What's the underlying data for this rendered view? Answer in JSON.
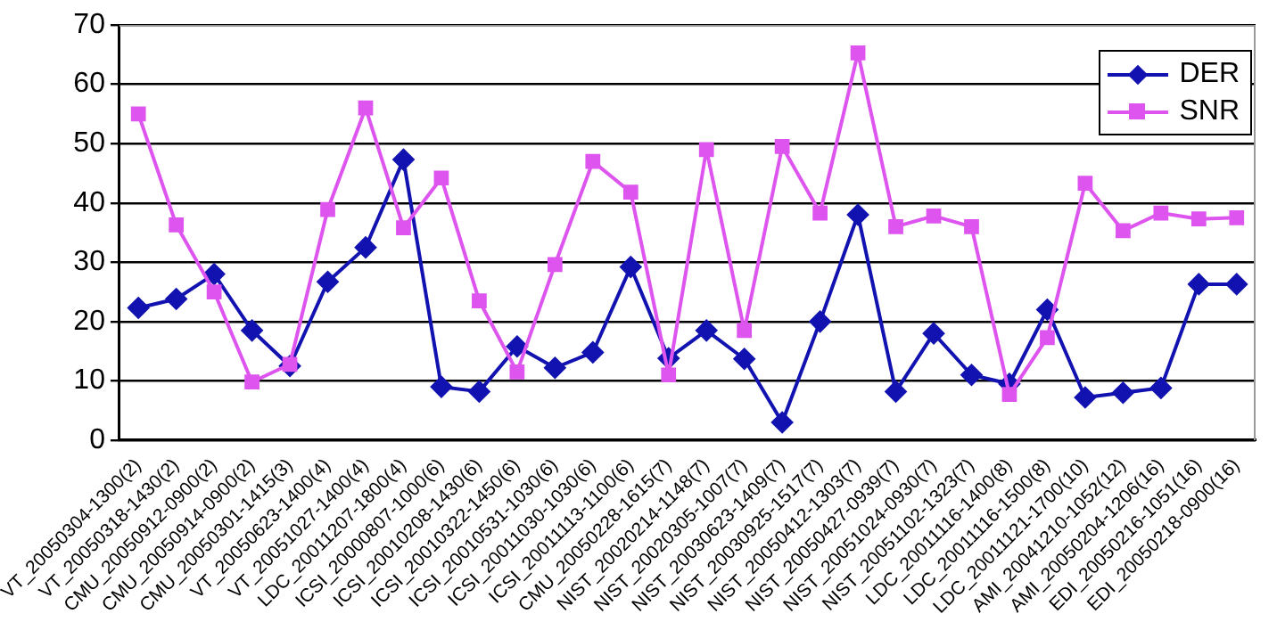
{
  "chart_data": {
    "type": "line",
    "categories": [
      "VT_20050304-1300(2)",
      "VT_20050318-1430(2)",
      "CMU_20050912-0900(2)",
      "CMU_20050914-0900(2)",
      "CMU_20050301-1415(3)",
      "VT_20050623-1400(4)",
      "VT_20051027-1400(4)",
      "LDC_20011207-1800(4)",
      "ICSI_20000807-1000(6)",
      "ICSI_20010208-1430(6)",
      "ICSI_20010322-1450(6)",
      "ICSI_20010531-1030(6)",
      "ICSI_20011030-1030(6)",
      "ICSI_20011113-1100(6)",
      "CMU_20050228-1615(7)",
      "NIST_20020214-1148(7)",
      "NIST_20020305-1007(7)",
      "NIST_20030623-1409(7)",
      "NIST_20030925-1517(7)",
      "NIST_20050412-1303(7)",
      "NIST_20050427-0939(7)",
      "NIST_20051024-0930(7)",
      "NIST_20051102-1323(7)",
      "LDC_20011116-1400(8)",
      "LDC_20011116-1500(8)",
      "LDC_20011121-1700(10)",
      "AMI_20041210-1052(12)",
      "AMI_20050204-1206(16)",
      "EDI_20050216-1051(16)",
      "EDI_20050218-0900(16)"
    ],
    "series": [
      {
        "name": "DER",
        "color": "#1212b0",
        "marker": "diamond",
        "values": [
          22.3,
          23.8,
          28,
          18.5,
          12.5,
          26.7,
          32.5,
          47.3,
          9,
          8.2,
          15.8,
          12.2,
          14.8,
          29.2,
          13.8,
          18.5,
          13.7,
          3,
          20,
          38,
          8.2,
          18,
          11,
          9.5,
          22,
          7.2,
          8,
          8.8,
          26.3,
          26.3
        ]
      },
      {
        "name": "SNR",
        "color": "#dd55ee",
        "marker": "square",
        "values": [
          55,
          36.3,
          25,
          9.8,
          12.8,
          38.9,
          56,
          35.8,
          44.2,
          23.5,
          11.5,
          29.6,
          47,
          41.8,
          11,
          49,
          18.5,
          49.5,
          38.3,
          65.3,
          36,
          37.8,
          36,
          7.7,
          17.3,
          43.3,
          35.3,
          38.3,
          37.3,
          37.5
        ]
      }
    ],
    "ylim": [
      0,
      70
    ],
    "yticks": [
      0,
      10,
      20,
      30,
      40,
      50,
      60,
      70
    ],
    "grid": "y",
    "legend": "top right"
  }
}
